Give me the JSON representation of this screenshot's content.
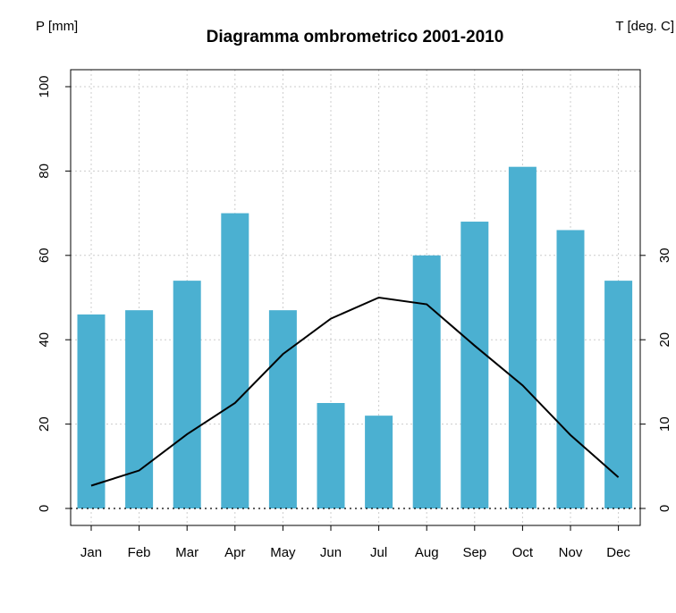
{
  "chart_data": {
    "type": "bar",
    "title": "Diagramma ombrometrico 2001-2010",
    "categories": [
      "Jan",
      "Feb",
      "Mar",
      "Apr",
      "May",
      "Jun",
      "Jul",
      "Aug",
      "Sep",
      "Oct",
      "Nov",
      "Dec"
    ],
    "series": [
      {
        "name": "P [mm]",
        "type": "bar",
        "axis": "left",
        "color": "#4bb0d1",
        "values": [
          46,
          47,
          54,
          70,
          47,
          25,
          22,
          60,
          68,
          81,
          66,
          54
        ]
      },
      {
        "name": "T [deg. C]",
        "type": "line",
        "axis": "right",
        "color": "#000000",
        "values": [
          2.7,
          4.5,
          8.8,
          12.5,
          18.3,
          22.5,
          25.0,
          24.2,
          19.3,
          14.6,
          8.7,
          3.7
        ]
      }
    ],
    "y_left": {
      "label": "P [mm]",
      "ylim": [
        0,
        100
      ],
      "ticks": [
        0,
        20,
        40,
        60,
        80,
        100
      ],
      "tick_labels": [
        "0",
        "20",
        "40",
        "60",
        "80",
        "100"
      ]
    },
    "y_right": {
      "label": "T [deg. C]",
      "ylim": [
        0,
        50
      ],
      "ticks": [
        0,
        10,
        20,
        30
      ],
      "tick_labels": [
        "0",
        "10",
        "20",
        "30"
      ]
    },
    "grid": true,
    "grid_style": "dotted",
    "legend": "none"
  }
}
